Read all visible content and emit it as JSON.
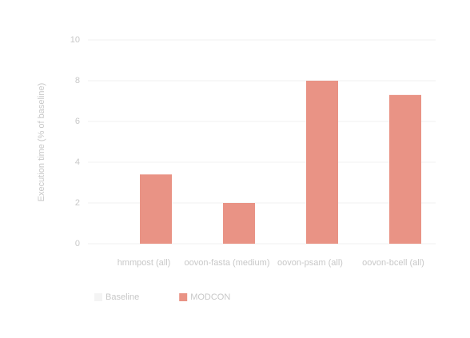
{
  "chart_data": {
    "type": "bar",
    "y_label": "Execution time (% of baseline)",
    "categories": [
      "hmmpost (all)",
      "oovon-fasta (medium)",
      "oovon-psam (all)",
      "oovon-bcell (all)"
    ],
    "series": [
      {
        "name": "Baseline",
        "color": "#f4f4f4",
        "values": [
          null,
          null,
          null,
          null
        ]
      },
      {
        "name": "MODCON",
        "color": "#e99385",
        "values": [
          3.4,
          2,
          8,
          7.3
        ]
      }
    ],
    "ylim": [
      0,
      10
    ],
    "yticks": [
      0,
      2,
      4,
      6,
      8,
      10
    ],
    "grid": true
  }
}
